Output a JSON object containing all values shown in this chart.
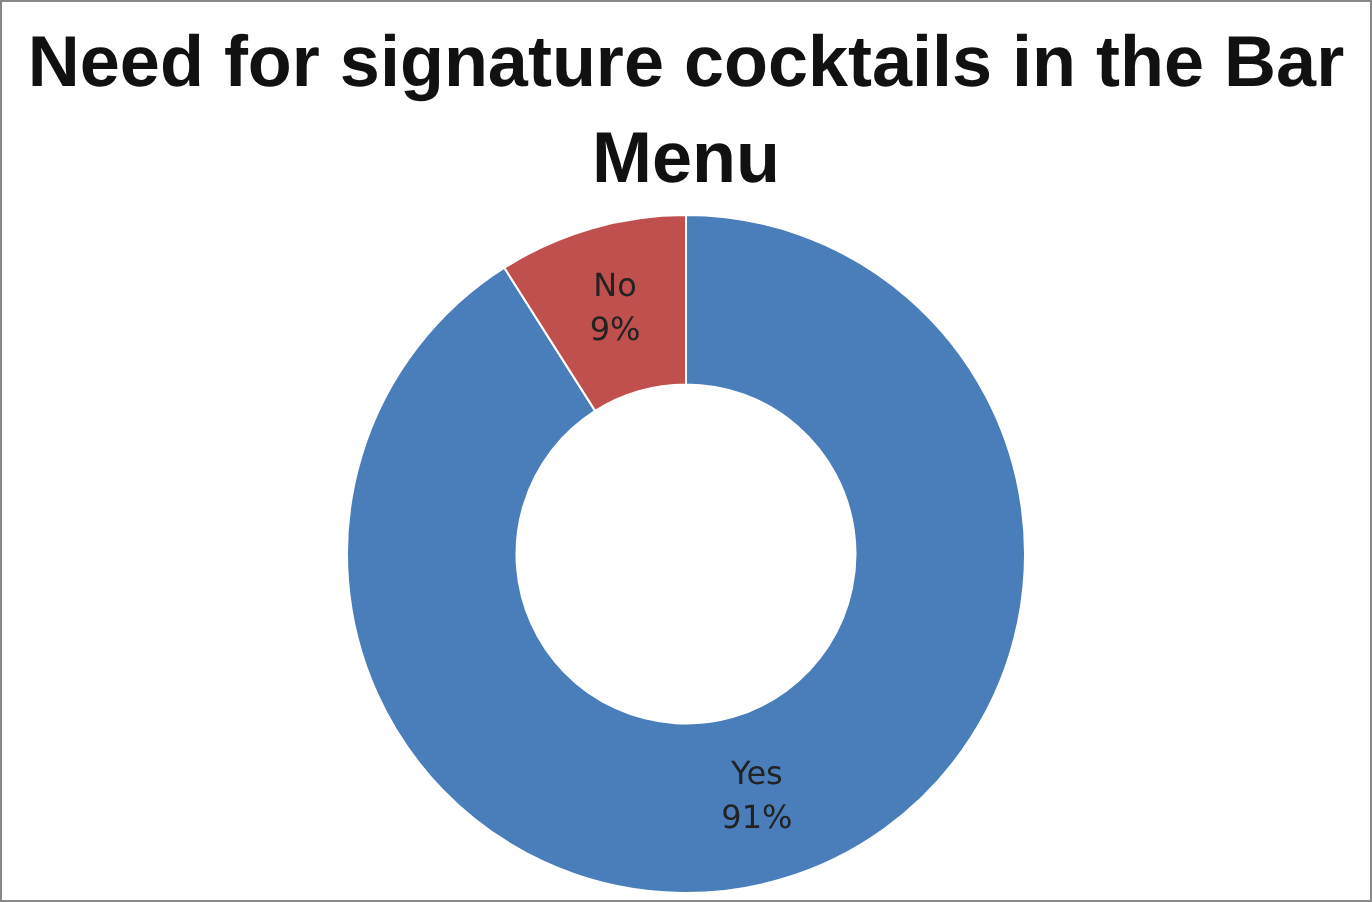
{
  "chart_data": {
    "type": "donut",
    "title": "Need for signature cocktails in the Bar Menu",
    "categories": [
      "Yes",
      "No"
    ],
    "values": [
      91,
      9
    ],
    "value_labels": [
      "91%",
      "9%"
    ],
    "colors": [
      "#4a7ebb",
      "#c0504d"
    ],
    "legend": false
  }
}
